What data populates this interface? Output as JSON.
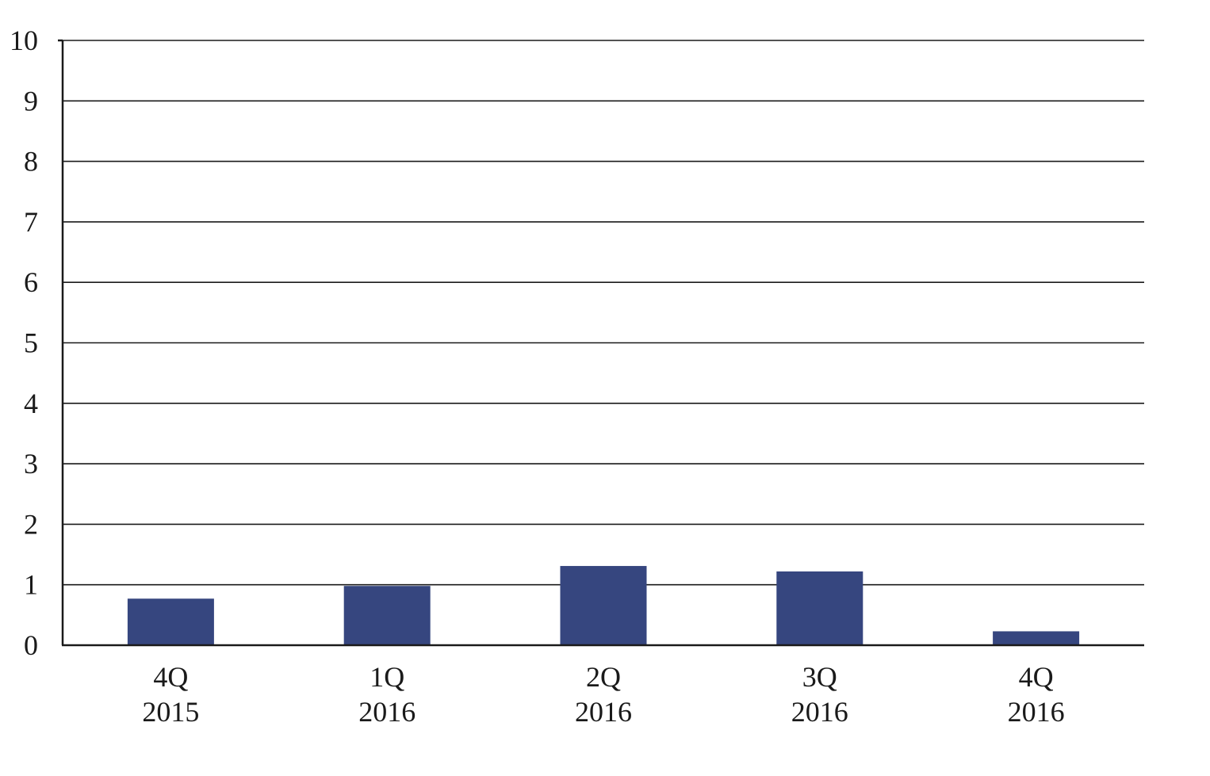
{
  "chart_data": {
    "type": "bar",
    "title": "",
    "xlabel": "",
    "ylabel": "",
    "categories": [
      [
        "4Q",
        "2015"
      ],
      [
        "1Q",
        "2016"
      ],
      [
        "2Q",
        "2016"
      ],
      [
        "3Q",
        "2016"
      ],
      [
        "4Q",
        "2016"
      ]
    ],
    "values": [
      0.77,
      0.98,
      1.31,
      1.22,
      0.23
    ],
    "ylim": [
      0,
      10
    ],
    "yticks": [
      0,
      1,
      2,
      3,
      4,
      5,
      6,
      7,
      8,
      9,
      10
    ],
    "grid": true,
    "legend": "none",
    "bar_color": "#36467f"
  }
}
